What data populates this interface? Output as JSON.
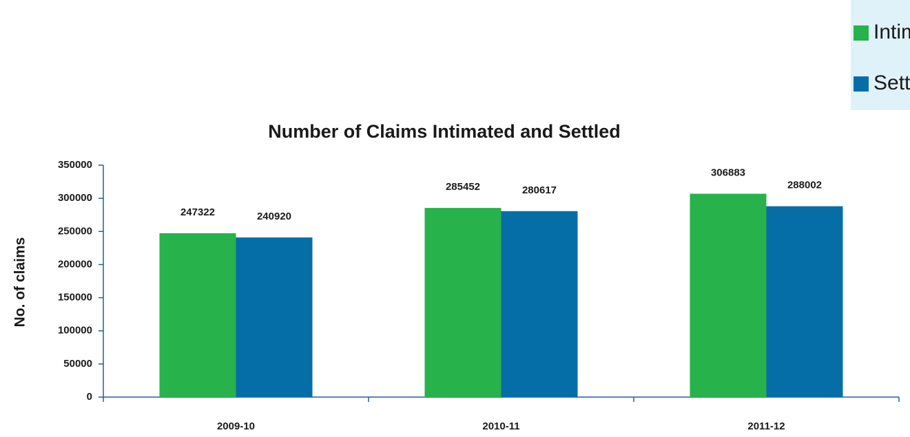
{
  "chart_data": {
    "type": "bar",
    "title": "Number of Claims Intimated and Settled",
    "y_label": "No. of claims",
    "categories": [
      "2009-10",
      "2010-11",
      "2011-12"
    ],
    "series": [
      {
        "name": "Intimated",
        "color": "#27b24b",
        "values": [
          247322,
          285452,
          306883
        ]
      },
      {
        "name": "Settled",
        "color": "#066ea6",
        "values": [
          240920,
          280617,
          288002
        ]
      }
    ],
    "ylim": [
      0,
      350000
    ],
    "yticks": [
      0,
      50000,
      100000,
      150000,
      200000,
      250000,
      300000,
      350000
    ],
    "legend": "top-right"
  }
}
